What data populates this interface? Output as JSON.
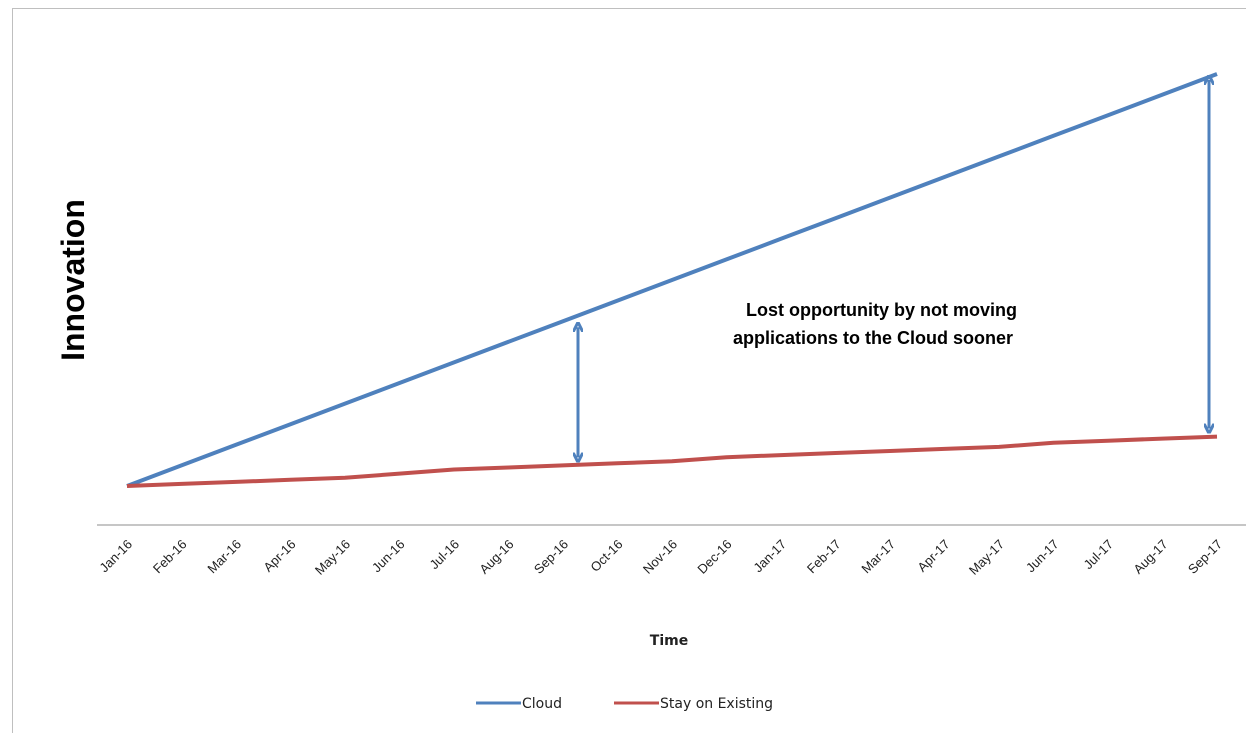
{
  "chart_data": {
    "type": "line",
    "title": "",
    "xlabel": "Time",
    "ylabel": "Innovation",
    "categories": [
      "Jan-16",
      "Feb-16",
      "Mar-16",
      "Apr-16",
      "May-16",
      "Jun-16",
      "Jul-16",
      "Aug-16",
      "Sep-16",
      "Oct-16",
      "Nov-16",
      "Dec-16",
      "Jan-17",
      "Feb-17",
      "Mar-17",
      "Apr-17",
      "May-17",
      "Jun-17",
      "Jul-17",
      "Aug-17",
      "Sep-17"
    ],
    "series": [
      {
        "name": "Cloud",
        "color": "#4f81bd",
        "values": [
          0,
          5,
          10,
          15,
          20,
          25,
          30,
          35,
          40,
          45,
          50,
          55,
          60,
          65,
          70,
          75,
          80,
          85,
          90,
          95,
          100
        ]
      },
      {
        "name": "Stay on Existing",
        "color": "#c0504d",
        "values": [
          0,
          0.5,
          1,
          1.5,
          2,
          3,
          4,
          4.5,
          5,
          5.5,
          6,
          7,
          7.5,
          8,
          8.5,
          9,
          9.5,
          10.5,
          11,
          11.5,
          12
        ]
      }
    ],
    "ylim": [
      -10,
      104
    ],
    "grid": false,
    "legend": "bottom",
    "annotation": {
      "lines": [
        "Lost opportunity by not moving",
        "applications to the Cloud sooner"
      ]
    },
    "arrows": [
      {
        "category": "Sep-16",
        "from": 5,
        "to": 40
      },
      {
        "category": "Sep-17",
        "from": 12,
        "to": 100
      }
    ]
  }
}
